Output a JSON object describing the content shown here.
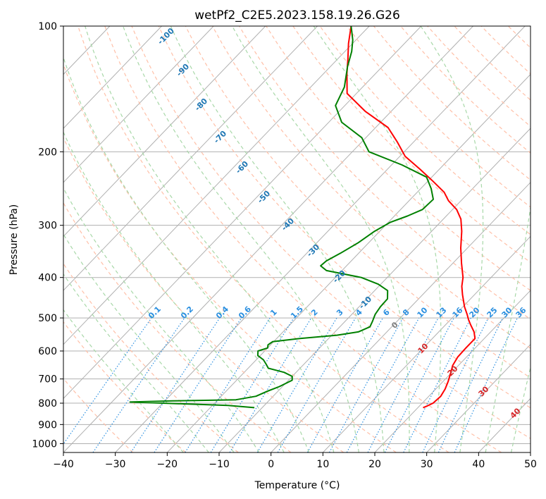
{
  "chart_data": {
    "type": "line",
    "title": "wetPf2_C2E5.2023.158.19.26.G26",
    "xlabel": "Temperature (°C)",
    "ylabel": "Pressure (hPa)",
    "xlim": [
      -40,
      50
    ],
    "ylim": [
      1050,
      100
    ],
    "y_scale": "log",
    "x_ticks": [
      -40,
      -30,
      -20,
      -10,
      0,
      10,
      20,
      30,
      40,
      50
    ],
    "y_ticks": [
      100,
      200,
      300,
      400,
      500,
      600,
      700,
      800,
      900,
      1000
    ],
    "grid": true,
    "skew_deg_per_decade": 77.3,
    "series": [
      {
        "color": "#ff0000",
        "pressure": [
          820,
          812,
          800,
          770,
          740,
          710,
          680,
          650,
          620,
          590,
          560,
          540,
          520,
          505,
          490,
          470,
          440,
          420,
          400,
          370,
          340,
          310,
          290,
          275,
          262,
          250,
          235,
          220,
          205,
          190,
          175,
          160,
          145,
          130,
          120,
          110,
          100
        ],
        "temperature": [
          21,
          21.5,
          22.1,
          22.3,
          21.8,
          21.0,
          20.0,
          18.9,
          18.3,
          18.2,
          18.2,
          16.8,
          14.9,
          13.5,
          12.2,
          10.3,
          7.7,
          6.0,
          4.6,
          1.7,
          -1.3,
          -4.2,
          -6.6,
          -9.2,
          -12.4,
          -14.8,
          -19.1,
          -23.8,
          -29.0,
          -33.0,
          -37.6,
          -45.0,
          -51.8,
          -55.5,
          -58.0,
          -60.8,
          -63.5
        ]
      },
      {
        "color": "#008000",
        "pressure": [
          820,
          810,
          800,
          795,
          790,
          785,
          770,
          750,
          730,
          705,
          690,
          675,
          660,
          645,
          630,
          615,
          600,
          590,
          580,
          570,
          560,
          550,
          540,
          525,
          510,
          490,
          470,
          450,
          430,
          415,
          400,
          385,
          375,
          365,
          350,
          330,
          310,
          295,
          285,
          275,
          260,
          245,
          230,
          215,
          200,
          185,
          170,
          155,
          140,
          125,
          115,
          108,
          100
        ],
        "temperature": [
          -11.5,
          -17.0,
          -30.0,
          -36.5,
          -28.5,
          -16.5,
          -13.3,
          -12.1,
          -10.6,
          -9.3,
          -10.0,
          -12.3,
          -16.1,
          -17.3,
          -18.6,
          -20.5,
          -21.3,
          -20.0,
          -20.5,
          -20.2,
          -15.5,
          -9.0,
          -5.5,
          -4.2,
          -4.7,
          -5.5,
          -5.9,
          -6.0,
          -7.5,
          -10.5,
          -15.0,
          -23.0,
          -25.0,
          -24.8,
          -23.5,
          -22.0,
          -21.0,
          -19.6,
          -17.5,
          -15.8,
          -15.6,
          -18.0,
          -21.0,
          -28.0,
          -36.8,
          -40.8,
          -47.5,
          -51.8,
          -53.5,
          -56.7,
          -58.7,
          -60.6,
          -63.5
        ]
      }
    ],
    "dry_adiabat_labels": [
      "-100",
      "-90",
      "-80",
      "-70",
      "-60",
      "-50",
      "-40",
      "-30",
      "-20",
      "-10"
    ],
    "moist_adiabat_labels": [
      "0",
      "10",
      "20",
      "30",
      "40"
    ],
    "mixing_ratio_labels": [
      "0.1",
      "0.2",
      "0.4",
      "0.6",
      "1",
      "1.5",
      "2",
      "3",
      "4",
      "6",
      "8",
      "10",
      "13",
      "16",
      "20",
      "25",
      "30",
      "36"
    ],
    "colors": {
      "temperature": "#ff0000",
      "dewpoint": "#008000",
      "isotherm": "#b0b0b0",
      "isobar": "#b0b0b0",
      "dry_adiabat": "#ffc0a8",
      "moist_adiabat": "#a8d8a8",
      "mixing_ratio": "#2a8fe0",
      "dry_label": "#1f77b4",
      "moist_label": "#d62728"
    }
  }
}
